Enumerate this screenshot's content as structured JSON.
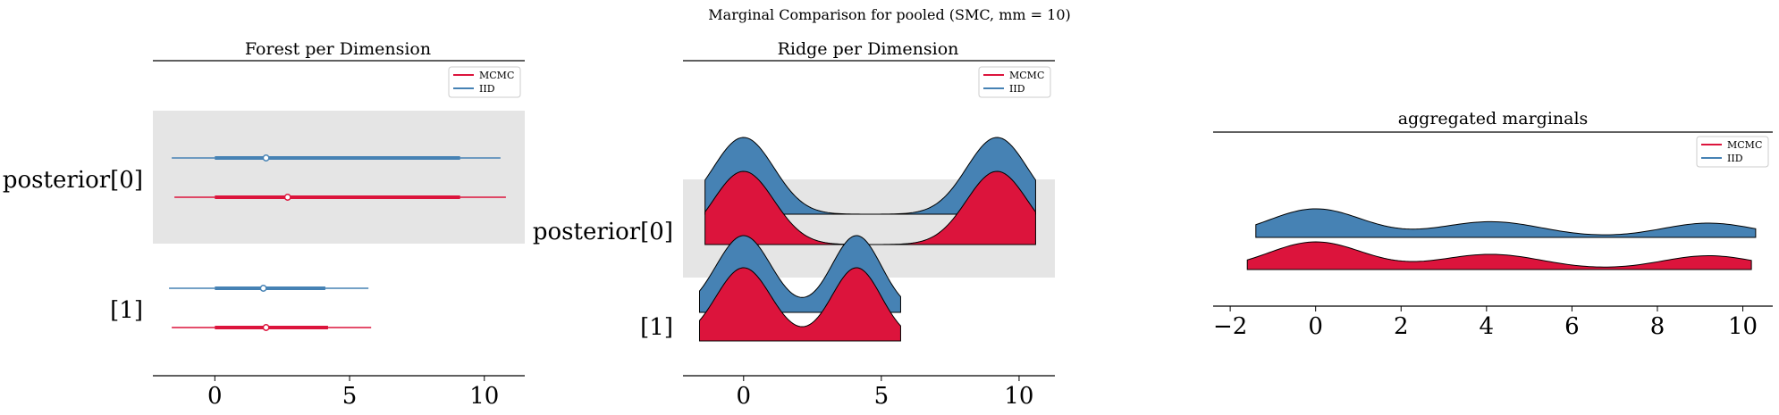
{
  "suptitle": "Marginal Comparison for pooled (SMC, mm = 10)",
  "colors": {
    "mcmc": "#dc143c",
    "iid": "#4682b4",
    "band": "#e5e5e5"
  },
  "legend": {
    "mcmc": "MCMC",
    "iid": "IID"
  },
  "chart_data": [
    {
      "type": "forest",
      "title": "Forest per Dimension",
      "xlim": [
        -2.3,
        11.5
      ],
      "xticks": [
        0,
        5,
        10
      ],
      "legend_placement": "top-right",
      "rows": [
        {
          "label": "posterior[0]",
          "series": [
            {
              "name": "IID",
              "min": -1.6,
              "q_lo": 0.0,
              "median": 1.9,
              "q_hi": 9.1,
              "max": 10.6
            },
            {
              "name": "MCMC",
              "min": -1.5,
              "q_lo": 0.0,
              "median": 2.7,
              "q_hi": 9.1,
              "max": 10.8
            }
          ]
        },
        {
          "label": "[1]",
          "series": [
            {
              "name": "IID",
              "min": -1.7,
              "q_lo": 0.0,
              "median": 1.8,
              "q_hi": 4.1,
              "max": 5.7
            },
            {
              "name": "MCMC",
              "min": -1.6,
              "q_lo": 0.0,
              "median": 1.9,
              "q_hi": 4.2,
              "max": 5.8
            }
          ]
        }
      ]
    },
    {
      "type": "ridgeline",
      "title": "Ridge per Dimension",
      "xlim": [
        -2.2,
        11.3
      ],
      "xticks": [
        0,
        5,
        10
      ],
      "legend_placement": "top-right",
      "rows": [
        {
          "label": "posterior[0]",
          "support": [
            -1.4,
            10.6
          ],
          "modes": [
            {
              "mean": 0.0,
              "sd": 1.1,
              "weight": 1.0
            },
            {
              "mean": 9.2,
              "sd": 1.1,
              "weight": 1.0
            }
          ]
        },
        {
          "label": "[1]",
          "support": [
            -1.6,
            5.7
          ],
          "modes": [
            {
              "mean": 0.0,
              "sd": 1.0,
              "weight": 1.0
            },
            {
              "mean": 4.1,
              "sd": 0.9,
              "weight": 1.0
            }
          ]
        }
      ]
    },
    {
      "type": "ridgeline",
      "title": "aggregated marginals",
      "xlim": [
        -2.4,
        10.7
      ],
      "xticks": [
        -2,
        0,
        2,
        4,
        6,
        8,
        10
      ],
      "legend_placement": "top-right",
      "series": [
        {
          "name": "IID",
          "support": [
            -1.4,
            10.3
          ],
          "modes": [
            {
              "mean": 0.0,
              "sd": 1.1,
              "weight": 1.0
            },
            {
              "mean": 4.1,
              "sd": 1.2,
              "weight": 0.55
            },
            {
              "mean": 9.2,
              "sd": 1.1,
              "weight": 0.5
            }
          ]
        },
        {
          "name": "MCMC",
          "support": [
            -1.6,
            10.2
          ],
          "modes": [
            {
              "mean": 0.0,
              "sd": 1.1,
              "weight": 1.0
            },
            {
              "mean": 4.1,
              "sd": 1.2,
              "weight": 0.55
            },
            {
              "mean": 9.2,
              "sd": 1.1,
              "weight": 0.5
            }
          ]
        }
      ]
    }
  ]
}
